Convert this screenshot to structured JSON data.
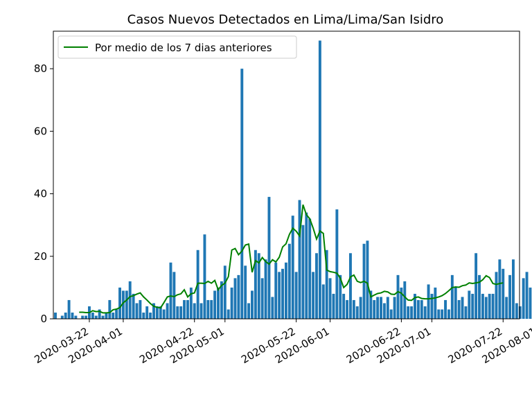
{
  "chart_data": {
    "type": "bar",
    "title": "Casos Nuevos Detectados en Lima/Lima/San Isidro",
    "xlabel": "",
    "ylabel": "",
    "start_date": "2020-03-12",
    "x_ticks": [
      "2020-03-22",
      "2020-04-01",
      "2020-04-22",
      "2020-05-01",
      "2020-05-22",
      "2020-06-01",
      "2020-06-22",
      "2020-07-01",
      "2020-07-22",
      "2020-08-01"
    ],
    "y_ticks": [
      0,
      20,
      40,
      60,
      80
    ],
    "ylim": [
      0,
      92
    ],
    "grid": false,
    "legend_position": "top-left",
    "colors": {
      "bars": "#1f77b4",
      "line": "#008000"
    },
    "values": [
      2,
      0,
      1,
      2,
      6,
      2,
      1,
      0,
      1,
      1,
      4,
      2,
      1,
      3,
      1,
      2,
      6,
      2,
      3,
      10,
      9,
      9,
      12,
      8,
      5,
      6,
      2,
      4,
      2,
      5,
      4,
      4,
      3,
      5,
      18,
      15,
      4,
      4,
      6,
      6,
      10,
      5,
      22,
      5,
      27,
      6,
      6,
      9,
      10,
      12,
      17,
      3,
      10,
      13,
      14,
      80,
      17,
      5,
      9,
      22,
      21,
      13,
      19,
      39,
      7,
      18,
      15,
      16,
      18,
      24,
      33,
      15,
      38,
      30,
      34,
      32,
      15,
      21,
      89,
      11,
      22,
      13,
      8,
      35,
      14,
      8,
      6,
      21,
      6,
      4,
      7,
      24,
      25,
      9,
      6,
      7,
      7,
      5,
      7,
      3,
      7,
      14,
      10,
      12,
      4,
      4,
      8,
      6,
      6,
      4,
      11,
      8,
      10,
      3,
      3,
      6,
      3,
      14,
      10,
      6,
      7,
      4,
      9,
      8,
      21,
      14,
      8,
      7,
      8,
      8,
      15,
      19,
      16,
      7,
      14,
      19,
      5,
      4,
      13,
      15,
      10,
      14
    ],
    "series": [
      {
        "name": "Por medio de los 7 dias anteriores",
        "type": "line",
        "start_index": 7,
        "values": [
          2.1,
          2.1,
          2.0,
          2.0,
          2.6,
          2.3,
          2.4,
          1.9,
          1.9,
          2.0,
          2.9,
          3.1,
          3.6,
          5.1,
          6.0,
          7.1,
          7.4,
          7.9,
          8.3,
          7.0,
          6.0,
          4.9,
          4.0,
          3.7,
          3.5,
          5.2,
          7.0,
          7.3,
          7.1,
          7.7,
          8.0,
          9.3,
          7.0,
          8.0,
          8.3,
          11.4,
          11.4,
          11.3,
          12.0,
          11.4,
          12.3,
          9.3,
          10.7,
          11.4,
          13.5,
          22.0,
          22.5,
          20.5,
          21.7,
          23.6,
          23.9,
          14.9,
          18.6,
          17.9,
          19.6,
          18.3,
          17.5,
          18.9,
          18.2,
          19.7,
          23.0,
          24.0,
          27.0,
          29.0,
          28.0,
          26.5,
          36.5,
          33.3,
          32.0,
          29.0,
          25.5,
          28.1,
          27.3,
          15.6,
          15.1,
          14.9,
          14.6,
          13.0,
          10.0,
          11.0,
          13.4,
          14.0,
          12.0,
          11.6,
          12.0,
          11.4,
          7.0,
          7.6,
          8.1,
          8.3,
          8.8,
          8.6,
          7.9,
          7.8,
          8.7,
          8.2,
          7.0,
          6.0,
          5.9,
          6.8,
          7.0,
          6.5,
          6.4,
          6.4,
          6.5,
          6.7,
          7.0,
          7.4,
          8.1,
          9.0,
          10.0,
          10.2,
          10.1,
          10.6,
          10.8,
          11.5,
          11.3,
          11.5,
          11.7,
          12.5,
          13.8,
          13.2,
          11.3,
          11.0,
          11.3,
          11.5
        ]
      }
    ]
  }
}
